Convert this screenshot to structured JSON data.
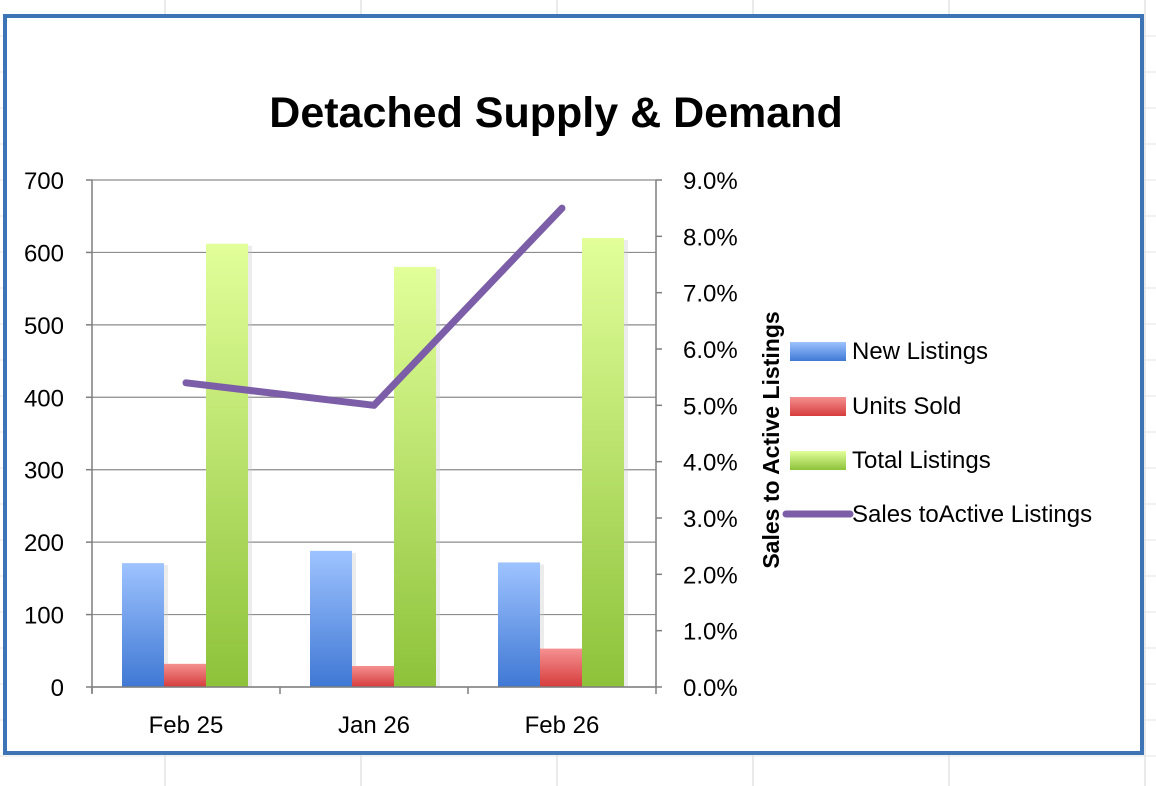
{
  "colors": {
    "new_listings": "#5b9bf0",
    "units_sold": "#f06a6a",
    "total_listings": "#b8e86a",
    "ratio_line": "#7b5ea7",
    "frame": "#3d74b6",
    "sheet_grid": "#d4d4d4"
  },
  "chart_data": {
    "type": "bar",
    "title": "Detached Supply & Demand",
    "categories": [
      "Feb 25",
      "Jan 26",
      "Feb 26"
    ],
    "series": [
      {
        "name": "New Listings",
        "type": "bar",
        "axis": "left",
        "values": [
          171,
          188,
          172
        ]
      },
      {
        "name": "Units Sold",
        "type": "bar",
        "axis": "left",
        "values": [
          32,
          29,
          53
        ]
      },
      {
        "name": "Total Listings",
        "type": "bar",
        "axis": "left",
        "values": [
          612,
          580,
          620
        ]
      },
      {
        "name": "Sales toActive Listings",
        "type": "line",
        "axis": "right",
        "values": [
          5.4,
          5.0,
          8.5
        ]
      }
    ],
    "y_left": {
      "ylim": [
        0,
        700
      ],
      "ticks": [
        "0",
        "100",
        "200",
        "300",
        "400",
        "500",
        "600",
        "700"
      ]
    },
    "y_right": {
      "label": "Sales to Active Listings",
      "ylim": [
        0,
        9
      ],
      "ticks": [
        "0.0%",
        "1.0%",
        "2.0%",
        "3.0%",
        "4.0%",
        "5.0%",
        "6.0%",
        "7.0%",
        "8.0%",
        "9.0%"
      ]
    },
    "grid": true,
    "legend_position": "right"
  }
}
